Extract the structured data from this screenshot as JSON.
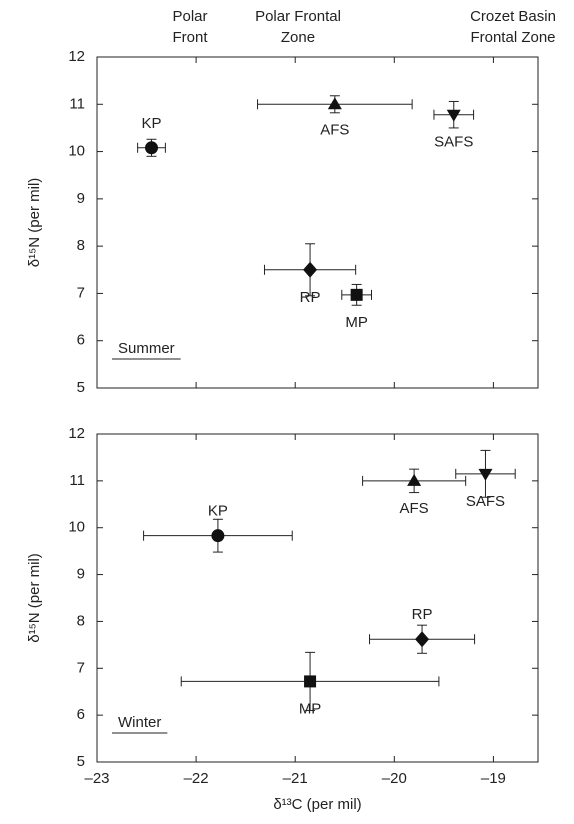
{
  "chart_data": [
    {
      "type": "scatter",
      "panel_label": "Summer",
      "y_label": "δ¹⁵N (per mil)",
      "annotations": [
        [
          "Polar",
          "Front"
        ],
        [
          "Polar Frontal",
          "Zone"
        ],
        [
          "Crozet Basin",
          "Frontal Zone"
        ]
      ],
      "xlim": [
        -23,
        -18.55
      ],
      "ylim": [
        5,
        12
      ],
      "yticks": [
        5,
        6,
        7,
        8,
        9,
        10,
        11,
        12
      ],
      "series": [
        {
          "name": "KP",
          "marker": "circle",
          "x": [
            -22.45
          ],
          "values": [
            10.08
          ],
          "xerr": [
            0.14
          ],
          "yerr": [
            0.18
          ]
        },
        {
          "name": "AFS",
          "marker": "triangle-up",
          "x": [
            -20.6
          ],
          "values": [
            11.0
          ],
          "xerr": [
            0.78
          ],
          "yerr": [
            0.18
          ]
        },
        {
          "name": "SAFS",
          "marker": "triangle-down",
          "x": [
            -19.4
          ],
          "values": [
            10.78
          ],
          "xerr": [
            0.2
          ],
          "yerr": [
            0.28
          ]
        },
        {
          "name": "RP",
          "marker": "diamond",
          "x": [
            -20.85
          ],
          "values": [
            7.5
          ],
          "xerr": [
            0.46
          ],
          "yerr": [
            0.55
          ]
        },
        {
          "name": "MP",
          "marker": "square",
          "x": [
            -20.38
          ],
          "values": [
            6.97
          ],
          "xerr": [
            0.15
          ],
          "yerr": [
            0.22
          ]
        }
      ]
    },
    {
      "type": "scatter",
      "panel_label": "Winter",
      "y_label": "δ¹⁵N (per mil)",
      "x_label": "δ¹³C (per mil)",
      "xlim": [
        -23,
        -18.55
      ],
      "ylim": [
        5,
        12
      ],
      "xticks": [
        {
          "value": -23,
          "label": "–23"
        },
        {
          "value": -22,
          "label": "–22"
        },
        {
          "value": -21,
          "label": "–21"
        },
        {
          "value": -20,
          "label": "–20"
        },
        {
          "value": -19,
          "label": "–19"
        }
      ],
      "yticks": [
        5,
        6,
        7,
        8,
        9,
        10,
        11,
        12
      ],
      "series": [
        {
          "name": "KP",
          "marker": "circle",
          "x": [
            -21.78
          ],
          "values": [
            9.83
          ],
          "xerr": [
            0.75
          ],
          "yerr": [
            0.35
          ]
        },
        {
          "name": "AFS",
          "marker": "triangle-up",
          "x": [
            -19.8
          ],
          "values": [
            11.0
          ],
          "xerr": [
            0.52
          ],
          "yerr": [
            0.25
          ]
        },
        {
          "name": "SAFS",
          "marker": "triangle-down",
          "x": [
            -19.08
          ],
          "values": [
            11.15
          ],
          "xerr": [
            0.3
          ],
          "yerr": [
            0.5
          ]
        },
        {
          "name": "RP",
          "marker": "diamond",
          "x": [
            -19.72
          ],
          "values": [
            7.62
          ],
          "xerr": [
            0.53
          ],
          "yerr": [
            0.3
          ]
        },
        {
          "name": "MP",
          "marker": "square",
          "x": [
            -20.85
          ],
          "values": [
            6.72
          ],
          "xerr": [
            1.3
          ],
          "yerr": [
            0.62
          ]
        }
      ]
    }
  ]
}
